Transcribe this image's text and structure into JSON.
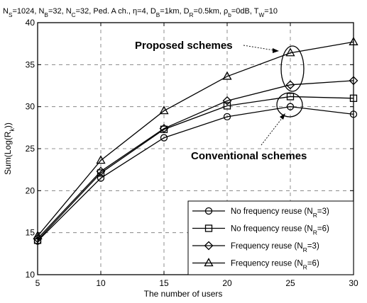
{
  "chart_data": {
    "type": "line",
    "title_parts": {
      "p1": "N",
      "s1": "S",
      "p2": "=1024, N",
      "s2": "B",
      "p3": "=32, N",
      "s3": "C",
      "p4": "=32, Ped. A ch., η=4, D",
      "s4": "B",
      "p5": "=1km, D",
      "s5": "R",
      "p6": "=0.5km, ρ",
      "s6": "b",
      "p7": "=0dB, T",
      "s7": "W",
      "p8": "=10"
    },
    "xlabel": "The number of users",
    "ylabel": "Sum(Log(R",
    "ylabel_sub": "k",
    "ylabel_end": "))",
    "x": [
      5,
      10,
      15,
      20,
      25,
      30
    ],
    "xticks": [
      "5",
      "10",
      "15",
      "20",
      "25",
      "30"
    ],
    "yticks": [
      "10",
      "15",
      "20",
      "25",
      "30",
      "35",
      "40"
    ],
    "xlim": [
      5,
      30
    ],
    "ylim": [
      10,
      40
    ],
    "grid": true,
    "legend_position": "bottom-right",
    "series": [
      {
        "name_pre": "No frequency reuse (N",
        "name_sub": "R",
        "name_post": "=3)",
        "marker": "circle",
        "values": [
          14.0,
          21.5,
          26.3,
          28.8,
          30.0,
          29.1
        ]
      },
      {
        "name_pre": "No frequency reuse (N",
        "name_sub": "R",
        "name_post": "=6)",
        "marker": "square",
        "values": [
          14.1,
          22.1,
          27.3,
          30.1,
          31.2,
          31.0
        ]
      },
      {
        "name_pre": "Frequency reuse (N",
        "name_sub": "R",
        "name_post": "=3)",
        "marker": "diamond",
        "values": [
          14.3,
          22.3,
          27.4,
          30.7,
          32.6,
          33.1
        ]
      },
      {
        "name_pre": "Frequency reuse (N",
        "name_sub": "R",
        "name_post": "=6)",
        "marker": "triangle",
        "values": [
          14.6,
          23.6,
          29.5,
          33.6,
          36.4,
          37.7
        ]
      }
    ],
    "annotations": {
      "proposed": "Proposed schemes",
      "conventional": "Conventional schemes"
    }
  }
}
